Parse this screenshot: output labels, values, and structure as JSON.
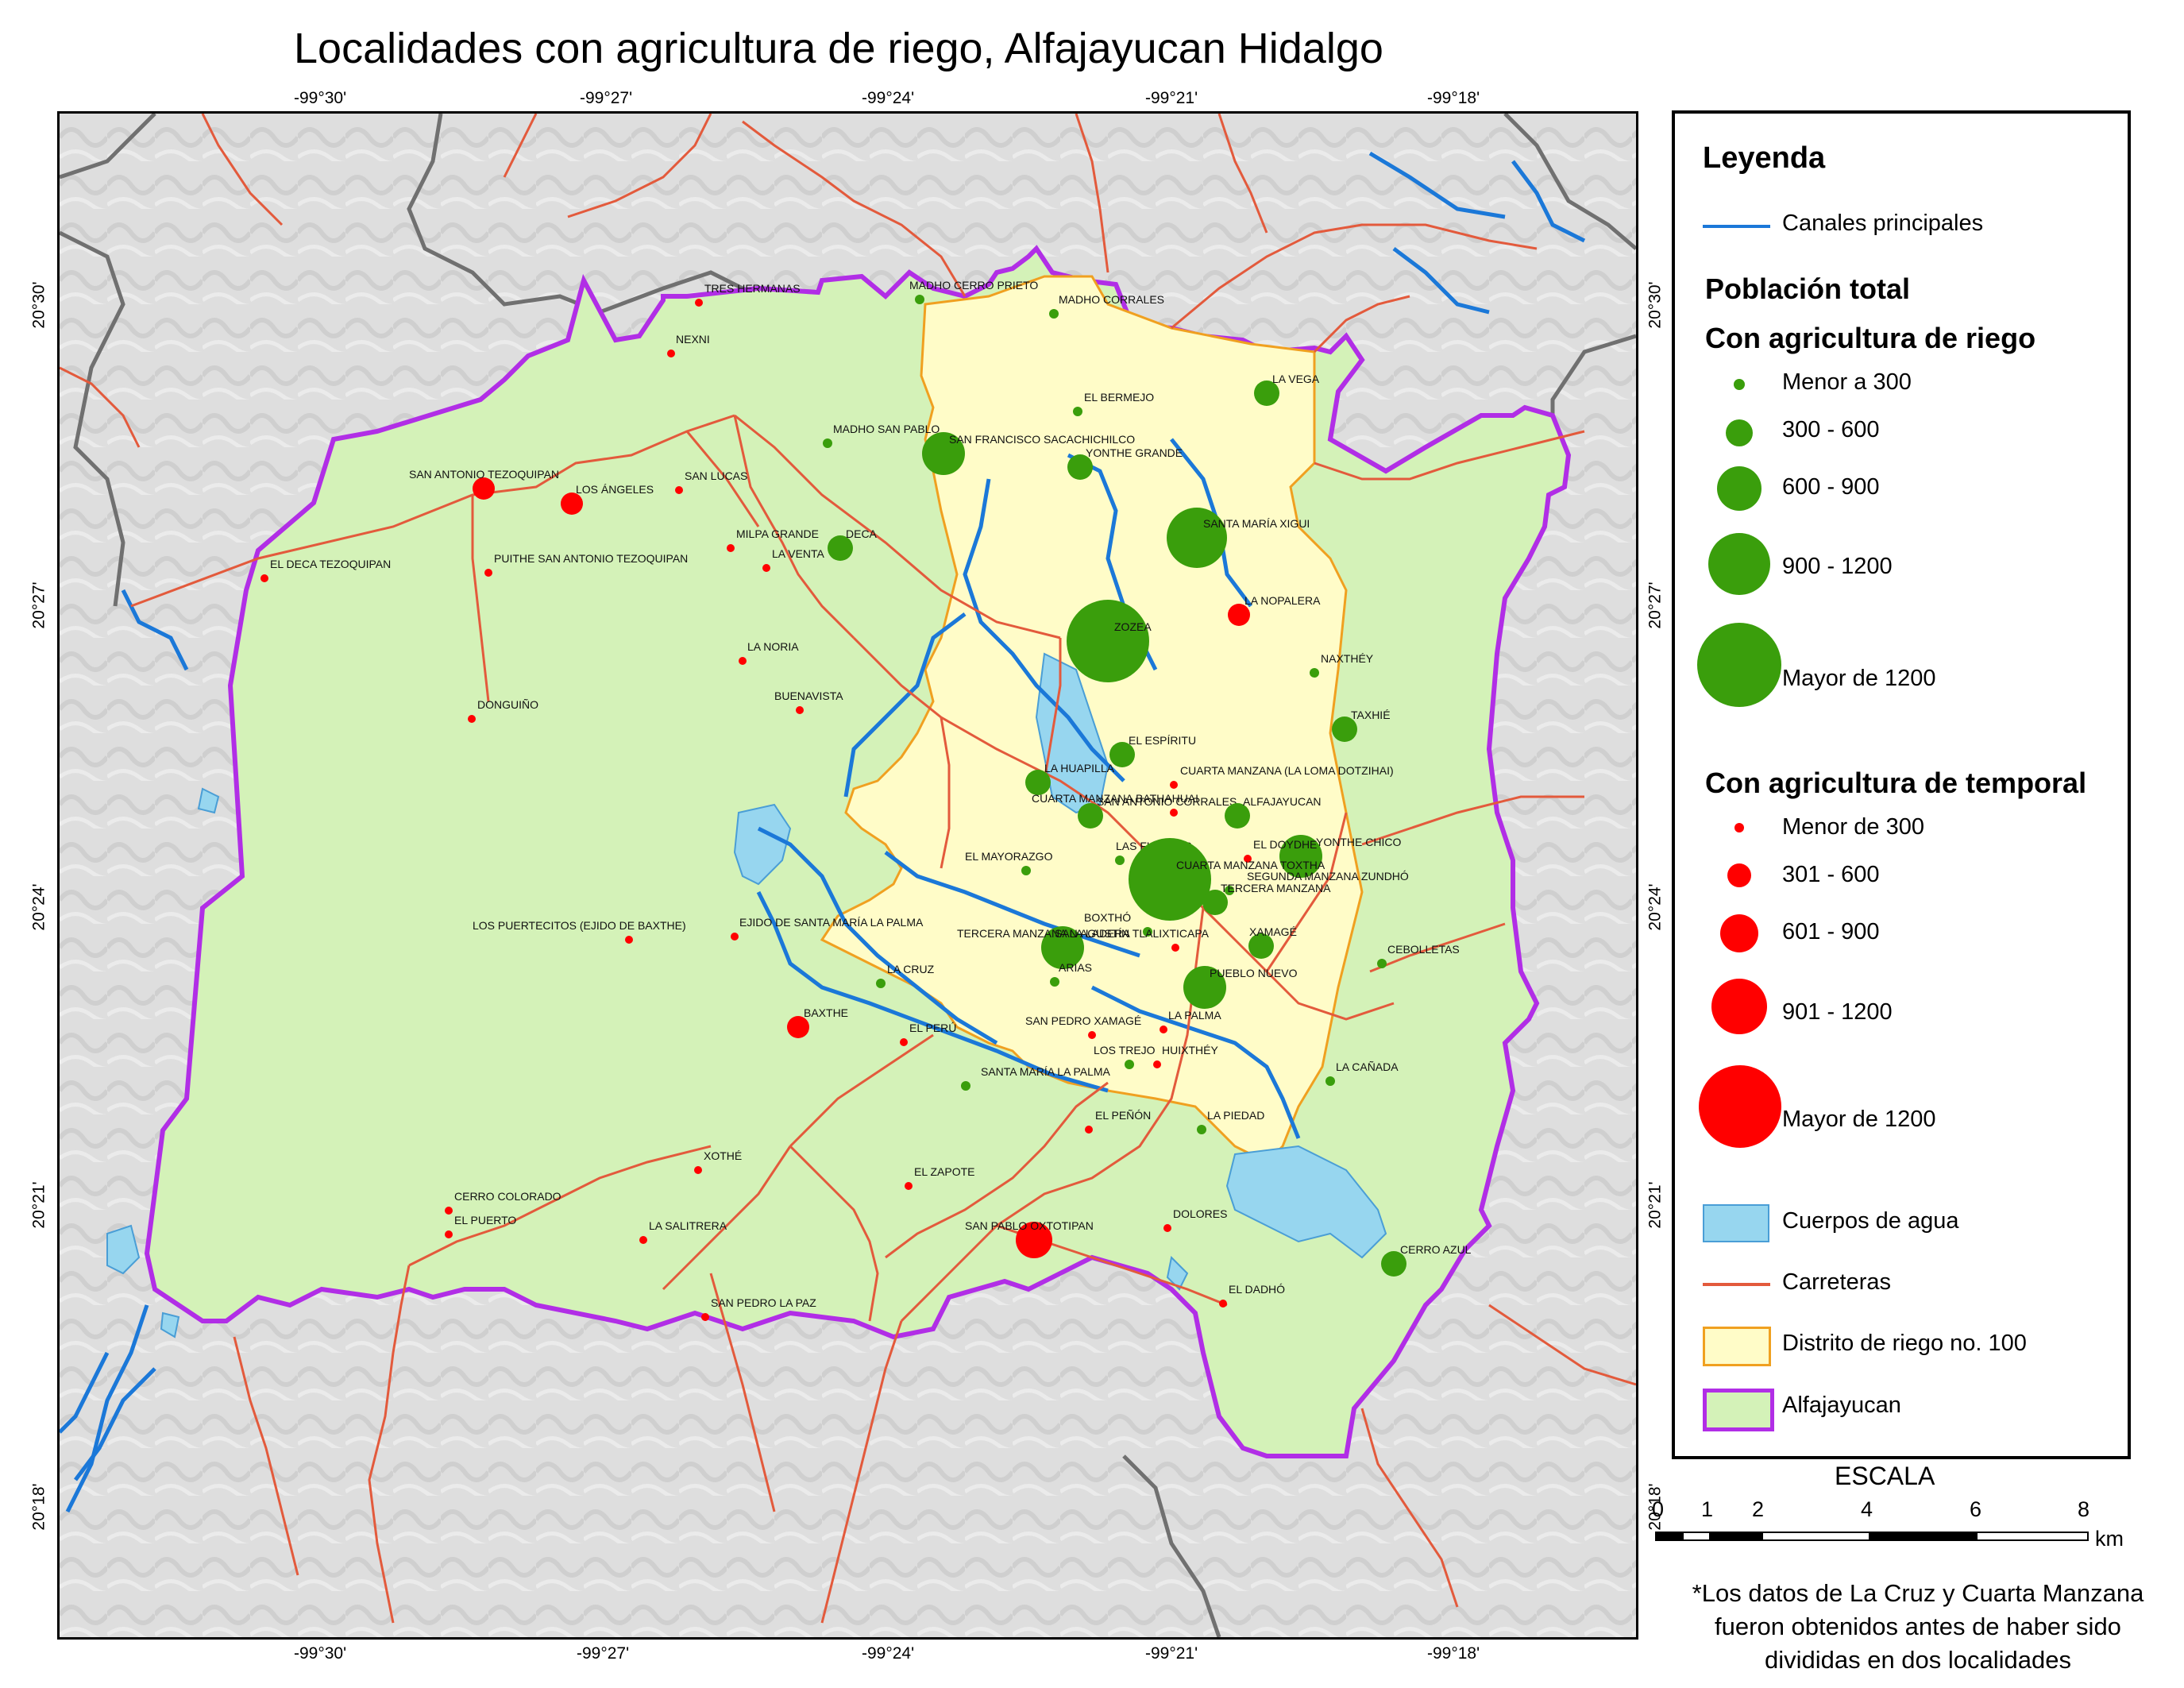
{
  "title": "Localidades con agricultura de riego, Alfajayucan Hidalgo",
  "coords": {
    "lon": [
      "-99°30'",
      "-99°27'",
      "-99°24'",
      "-99°21'",
      "-99°18'"
    ],
    "lat": [
      "20°30'",
      "20°27'",
      "20°24'",
      "20°21'",
      "20°18'"
    ]
  },
  "legend": {
    "title": "Leyenda",
    "canales": "Canales principales",
    "poblacion": "Población total",
    "riego_title": "Con agricultura de riego",
    "riego_classes": [
      "Menor a 300",
      "300 - 600",
      "600 - 900",
      "900 - 1200",
      "Mayor de 1200"
    ],
    "temporal_title": "Con agricultura de temporal",
    "temporal_classes": [
      "Menor de 300",
      "301 - 600",
      "601 - 900",
      "901 - 1200",
      "Mayor de 1200"
    ],
    "cuerpos": "Cuerpos de agua",
    "carreteras": "Carreteras",
    "distrito": "Distrito de riego no. 100",
    "municipio": "Alfajayucan"
  },
  "colors": {
    "riego": "#3a9e0c",
    "temporal": "#ff0000",
    "municipio_fill": "#d4f2b8",
    "municipio_border": "#b12ee6",
    "distrito_fill": "#fffcc8",
    "distrito_border": "#f0a020",
    "water": "#97d6ef",
    "canal": "#1b78d8",
    "road": "#e35a3c",
    "boundary": "#707070"
  },
  "scale": {
    "title": "ESCALA",
    "ticks": [
      "0",
      "1",
      "2",
      "4",
      "6",
      "8"
    ],
    "unit": "km"
  },
  "footnote": [
    "*Los datos de La Cruz y Cuarta Manzana",
    "fueron obtenidos antes de haber sido",
    "divididas en dos localidades"
  ],
  "localities": [
    {
      "name": "TRES HERMANAS",
      "type": "temporal",
      "cls": 0
    },
    {
      "name": "MADHO CERRO PRIETO",
      "type": "riego",
      "cls": 0
    },
    {
      "name": "MADHO CORRALES",
      "type": "riego",
      "cls": 0
    },
    {
      "name": "NEXNI",
      "type": "temporal",
      "cls": 0
    },
    {
      "name": "LA VEGA",
      "type": "riego",
      "cls": 1
    },
    {
      "name": "EL BERMEJO",
      "type": "riego",
      "cls": 0
    },
    {
      "name": "MADHO SAN PABLO",
      "type": "riego",
      "cls": 0
    },
    {
      "name": "SAN FRANCISCO SACACHICHILCO",
      "type": "riego",
      "cls": 2
    },
    {
      "name": "YONTHE GRANDE",
      "type": "riego",
      "cls": 1
    },
    {
      "name": "SAN ANTONIO TEZOQUIPAN",
      "type": "temporal",
      "cls": 1
    },
    {
      "name": "LOS ÁNGELES",
      "type": "temporal",
      "cls": 1
    },
    {
      "name": "SAN LUCAS",
      "type": "temporal",
      "cls": 0
    },
    {
      "name": "SANTA MARÍA XIGUI",
      "type": "riego",
      "cls": 3
    },
    {
      "name": "MILPA GRANDE",
      "type": "temporal",
      "cls": 0
    },
    {
      "name": "DECA",
      "type": "riego",
      "cls": 1
    },
    {
      "name": "LA VENTA",
      "type": "temporal",
      "cls": 0
    },
    {
      "name": "PUITHE SAN ANTONIO TEZOQUIPAN",
      "type": "temporal",
      "cls": 0
    },
    {
      "name": "EL DECA TEZOQUIPAN",
      "type": "temporal",
      "cls": 0
    },
    {
      "name": "ZOZEA",
      "type": "riego",
      "cls": 4
    },
    {
      "name": "LA NOPALERA",
      "type": "temporal",
      "cls": 1
    },
    {
      "name": "NAXTHÉY",
      "type": "riego",
      "cls": 0
    },
    {
      "name": "LA NORIA",
      "type": "temporal",
      "cls": 0
    },
    {
      "name": "TAXHIÉ",
      "type": "riego",
      "cls": 1
    },
    {
      "name": "DONGUIÑO",
      "type": "temporal",
      "cls": 0
    },
    {
      "name": "BUENAVISTA",
      "type": "temporal",
      "cls": 0
    },
    {
      "name": "EL ESPÍRITU",
      "type": "riego",
      "cls": 1
    },
    {
      "name": "LA HUAPILLA",
      "type": "riego",
      "cls": 1
    },
    {
      "name": "CUARTA MANZANA (LA LOMA DOTZIHAI)",
      "type": "temporal",
      "cls": 0
    },
    {
      "name": "SAN ANTONIO CORRALES",
      "type": "riego",
      "cls": 1
    },
    {
      "name": "CUARTA MANZANA BATHAHUAI",
      "type": "temporal",
      "cls": 0
    },
    {
      "name": "ALFAJAYUCAN",
      "type": "riego",
      "cls": 1
    },
    {
      "name": "YONTHE CHICO",
      "type": "riego",
      "cls": 2
    },
    {
      "name": "EL DOYDHE",
      "type": "temporal",
      "cls": 0
    },
    {
      "name": "EL MAYORAZGO",
      "type": "riego",
      "cls": 0
    },
    {
      "name": "LAS FUENTES",
      "type": "riego",
      "cls": 0
    },
    {
      "name": "CUARTA MANZANA TOXTHA",
      "type": "riego",
      "cls": 4
    },
    {
      "name": "SEGUNDA MANZANA ZUNDHÓ",
      "type": "riego",
      "cls": 0
    },
    {
      "name": "TERCERA MANZANA",
      "type": "riego",
      "cls": 1
    },
    {
      "name": "BOXTHÓ",
      "type": "riego",
      "cls": 0
    },
    {
      "name": "LOS PUERTECITOS (EJIDO DE BAXTHE)",
      "type": "temporal",
      "cls": 0
    },
    {
      "name": "EJIDO DE SANTA MARÍA LA PALMA",
      "type": "temporal",
      "cls": 0
    },
    {
      "name": "SAN AGUSTÍN TLALIXTICAPA",
      "type": "riego",
      "cls": 2
    },
    {
      "name": "TERCERA MANZANA LA LADERA",
      "type": "temporal",
      "cls": 0
    },
    {
      "name": "XAMAGÉ",
      "type": "riego",
      "cls": 1
    },
    {
      "name": "CEBOLLETAS",
      "type": "riego",
      "cls": 0
    },
    {
      "name": "ARIAS",
      "type": "riego",
      "cls": 0
    },
    {
      "name": "LA CRUZ",
      "type": "riego",
      "cls": 0
    },
    {
      "name": "PUEBLO NUEVO",
      "type": "riego",
      "cls": 2
    },
    {
      "name": "BAXTHE",
      "type": "temporal",
      "cls": 1
    },
    {
      "name": "SAN PEDRO XAMAGÉ",
      "type": "temporal",
      "cls": 0
    },
    {
      "name": "LA PALMA",
      "type": "temporal",
      "cls": 0
    },
    {
      "name": "EL PERÚ",
      "type": "temporal",
      "cls": 0
    },
    {
      "name": "LOS TREJO",
      "type": "riego",
      "cls": 0
    },
    {
      "name": "HUIXTHÉY",
      "type": "temporal",
      "cls": 0
    },
    {
      "name": "SANTA MARÍA LA PALMA",
      "type": "riego",
      "cls": 0
    },
    {
      "name": "LA CAÑADA",
      "type": "riego",
      "cls": 0
    },
    {
      "name": "EL PEÑÓN",
      "type": "temporal",
      "cls": 0
    },
    {
      "name": "LA PIEDAD",
      "type": "riego",
      "cls": 0
    },
    {
      "name": "XOTHÉ",
      "type": "temporal",
      "cls": 0
    },
    {
      "name": "EL ZAPOTE",
      "type": "temporal",
      "cls": 0
    },
    {
      "name": "CERRO COLORADO",
      "type": "temporal",
      "cls": 0
    },
    {
      "name": "EL PUERTO",
      "type": "temporal",
      "cls": 0
    },
    {
      "name": "LA SALITRERA",
      "type": "temporal",
      "cls": 0
    },
    {
      "name": "SAN PABLO OXTOTIPAN",
      "type": "temporal",
      "cls": 2
    },
    {
      "name": "DOLORES",
      "type": "temporal",
      "cls": 0
    },
    {
      "name": "CERRO AZUL",
      "type": "riego",
      "cls": 1
    },
    {
      "name": "EL DADHÓ",
      "type": "temporal",
      "cls": 0
    },
    {
      "name": "SAN PEDRO LA PAZ",
      "type": "temporal",
      "cls": 0
    }
  ]
}
